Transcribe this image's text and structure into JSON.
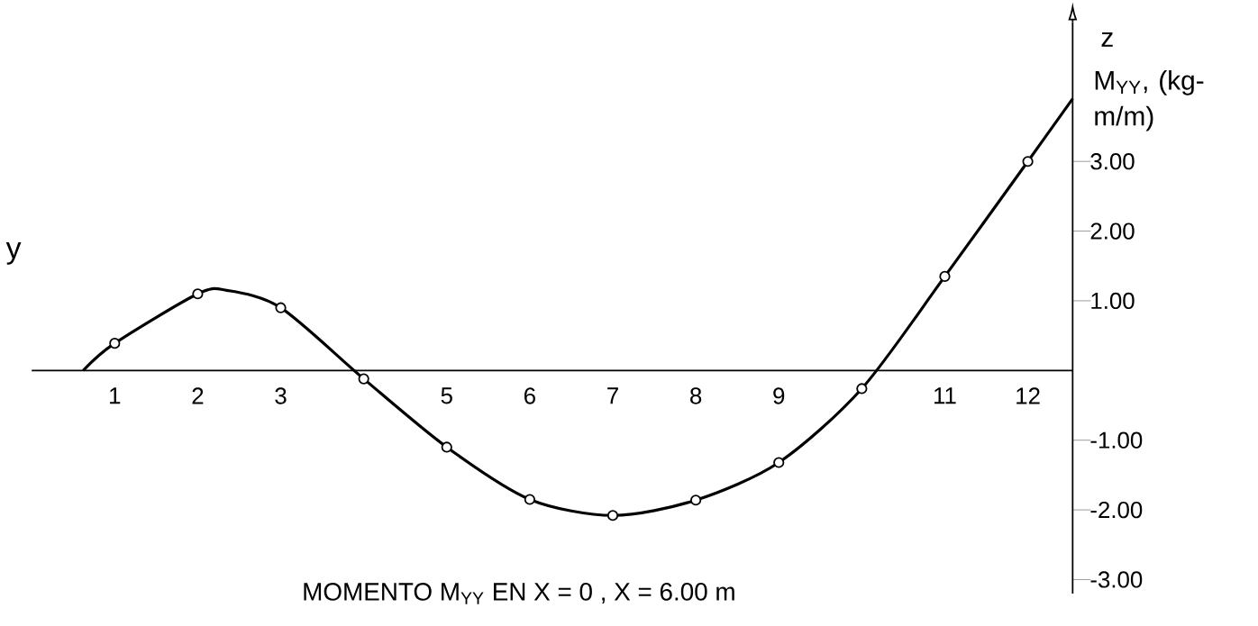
{
  "chart_data": {
    "type": "line",
    "title": "MOMENTO M$_{YY}$ EN X = 0 , X = 6.00 m",
    "xlabel": "y",
    "ylabel": "z",
    "annotations": [
      "M$_{YY}$, (kg-m/m)"
    ],
    "xlim": [
      0,
      12.54
    ],
    "ylim": [
      -3.2,
      5.0
    ],
    "xticks": [
      1,
      2,
      3,
      5,
      6,
      7,
      8,
      9,
      11,
      12
    ],
    "yticks": [
      {
        "value": -3,
        "label": "-3.00"
      },
      {
        "value": -2,
        "label": "-2.00"
      },
      {
        "value": -1,
        "label": "-1.00"
      },
      {
        "value": 1,
        "label": "1.00"
      },
      {
        "value": 2,
        "label": "2.00"
      },
      {
        "value": 3,
        "label": "3.00"
      }
    ],
    "series": [
      {
        "color": "#000000",
        "marker": "none",
        "x": [
          0.62,
          1,
          2,
          2.35,
          3,
          4,
          5,
          6,
          7,
          8,
          9,
          10,
          11,
          12,
          12.54
        ],
        "values": [
          0,
          0.39,
          1.1,
          1.15,
          0.9,
          -0.12,
          -1.1,
          -1.85,
          -2.08,
          -1.86,
          -1.32,
          -0.26,
          1.35,
          3.0,
          3.9
        ]
      },
      {
        "type": "scatter",
        "color": "#000000",
        "marker": "circle",
        "x": [
          1,
          2,
          3,
          4,
          5,
          6,
          7,
          8,
          9,
          10,
          11,
          12
        ],
        "values": [
          0.39,
          1.1,
          0.9,
          -0.12,
          -1.1,
          -1.85,
          -2.08,
          -1.86,
          -1.32,
          -0.26,
          1.35,
          3.0
        ]
      }
    ]
  }
}
